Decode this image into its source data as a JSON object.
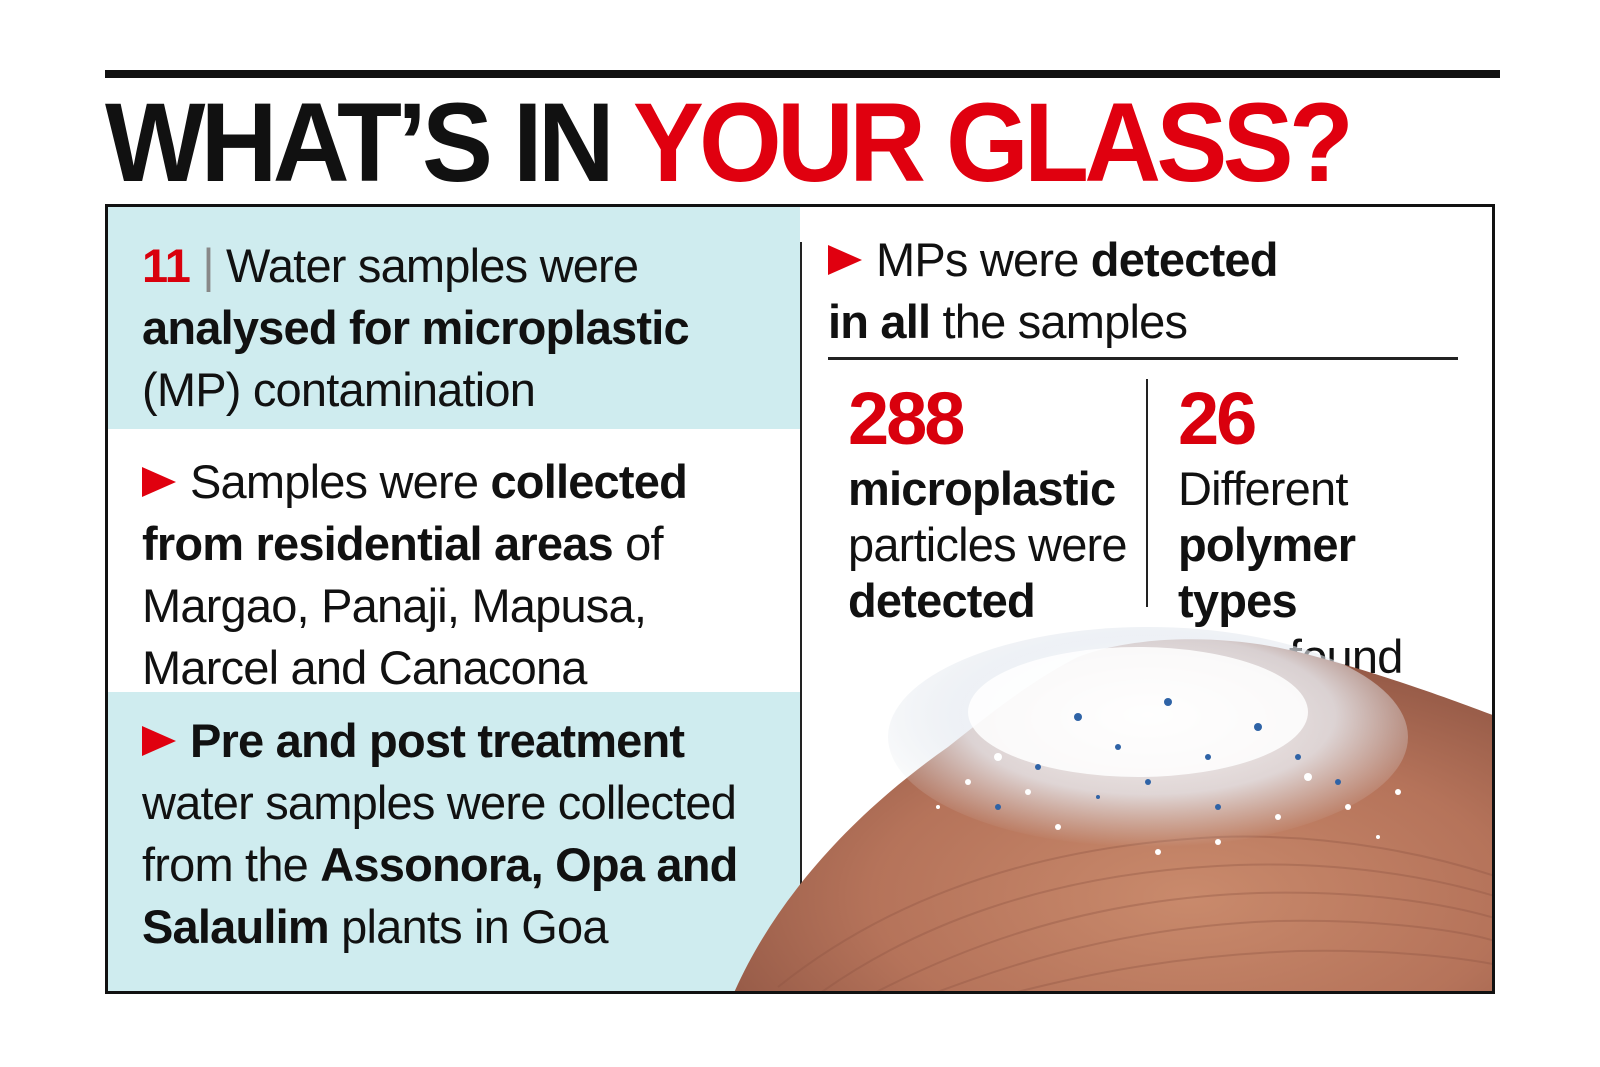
{
  "headline": {
    "part1": "WHAT’S IN ",
    "part2": "YOUR GLASS?"
  },
  "left": {
    "block1": {
      "number": "11",
      "separator": " | ",
      "line1": "Water samples were",
      "line2_bold": "analysed for microplastic",
      "line3": "(MP) contamination"
    },
    "block2": {
      "line1_a": "Samples were ",
      "line1_bold": "collected",
      "line2_bold": "from residential areas",
      "line2_b": " of",
      "line3": "Margao, Panaji, Mapusa,",
      "line4": "Marcel and Canacona"
    },
    "block3": {
      "line1_bold": "Pre and post treatment",
      "line2": "water samples were collected",
      "line3_a": "from the ",
      "line3_bold": "Assonora, Opa and",
      "line4_bold": "Salaulim",
      "line4_b": " plants in Goa"
    }
  },
  "right": {
    "top": {
      "line1_a": "MPs were ",
      "line1_bold": "detected",
      "line2_bold": "in all",
      "line2_b": " the samples"
    },
    "stat1": {
      "number": "288",
      "line1_bold": "microplastic",
      "line2": "particles were",
      "line3_bold": "detected"
    },
    "stat2": {
      "number": "26",
      "line1": "Different",
      "line2_bold": "polymer types",
      "line3": "were found"
    }
  },
  "colors": {
    "accent_red": "#e0000f",
    "panel_teal": "#cfecef",
    "ink": "#111111"
  },
  "photo": {
    "subject": "fingertip-with-microplastic-particles"
  }
}
